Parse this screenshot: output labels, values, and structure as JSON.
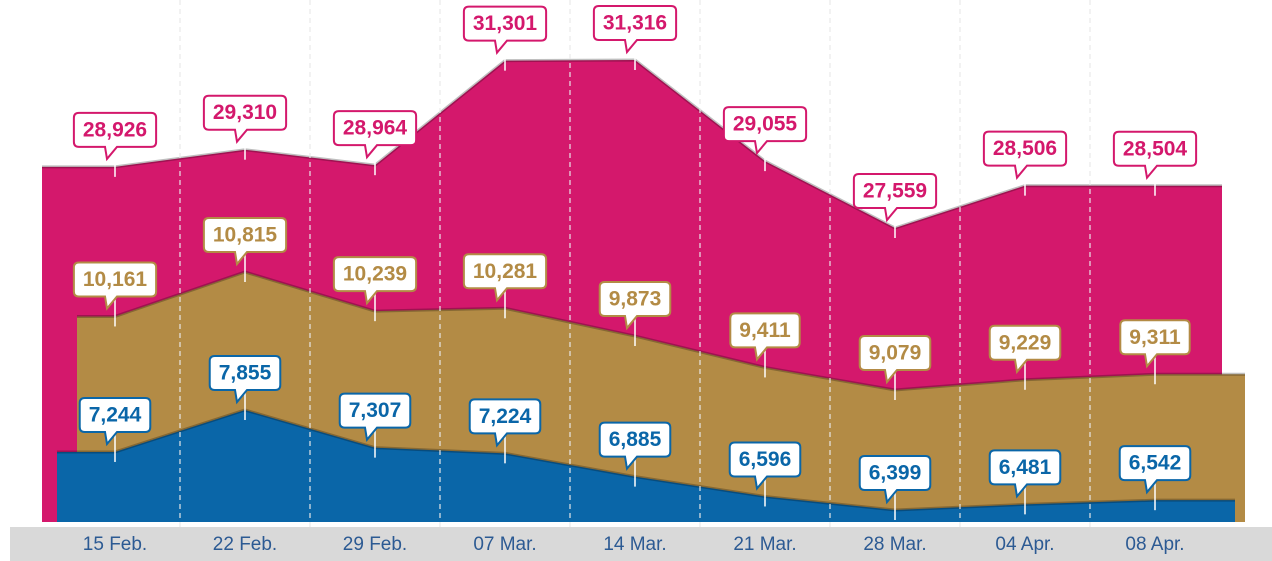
{
  "chart_data": {
    "type": "area",
    "categories": [
      "15 Feb.",
      "22 Feb.",
      "29 Feb.",
      "07 Mar.",
      "14 Mar.",
      "21 Mar.",
      "28 Mar.",
      "04 Apr.",
      "08 Apr."
    ],
    "series": [
      {
        "color": "#d4186c",
        "values": [
          28926,
          29310,
          28964,
          31301,
          31316,
          29055,
          27559,
          28506,
          28504
        ],
        "value_labels": [
          "28,926",
          "29,310",
          "28,964",
          "31,301",
          "31,316",
          "29,055",
          "27,559",
          "28,506",
          "28,504"
        ]
      },
      {
        "color": "#b38b45",
        "values": [
          10161,
          10815,
          10239,
          10281,
          9873,
          9411,
          9079,
          9229,
          9311
        ],
        "value_labels": [
          "10,161",
          "10,815",
          "10,239",
          "10,281",
          "9,873",
          "9,411",
          "9,079",
          "9,229",
          "9,311"
        ]
      },
      {
        "color": "#0a66a8",
        "values": [
          7244,
          7855,
          7307,
          7224,
          6885,
          6596,
          6399,
          6481,
          6542
        ],
        "value_labels": [
          "7,244",
          "7,855",
          "7,307",
          "7,224",
          "6,885",
          "6,596",
          "6,399",
          "6,481",
          "6,542"
        ]
      }
    ]
  }
}
